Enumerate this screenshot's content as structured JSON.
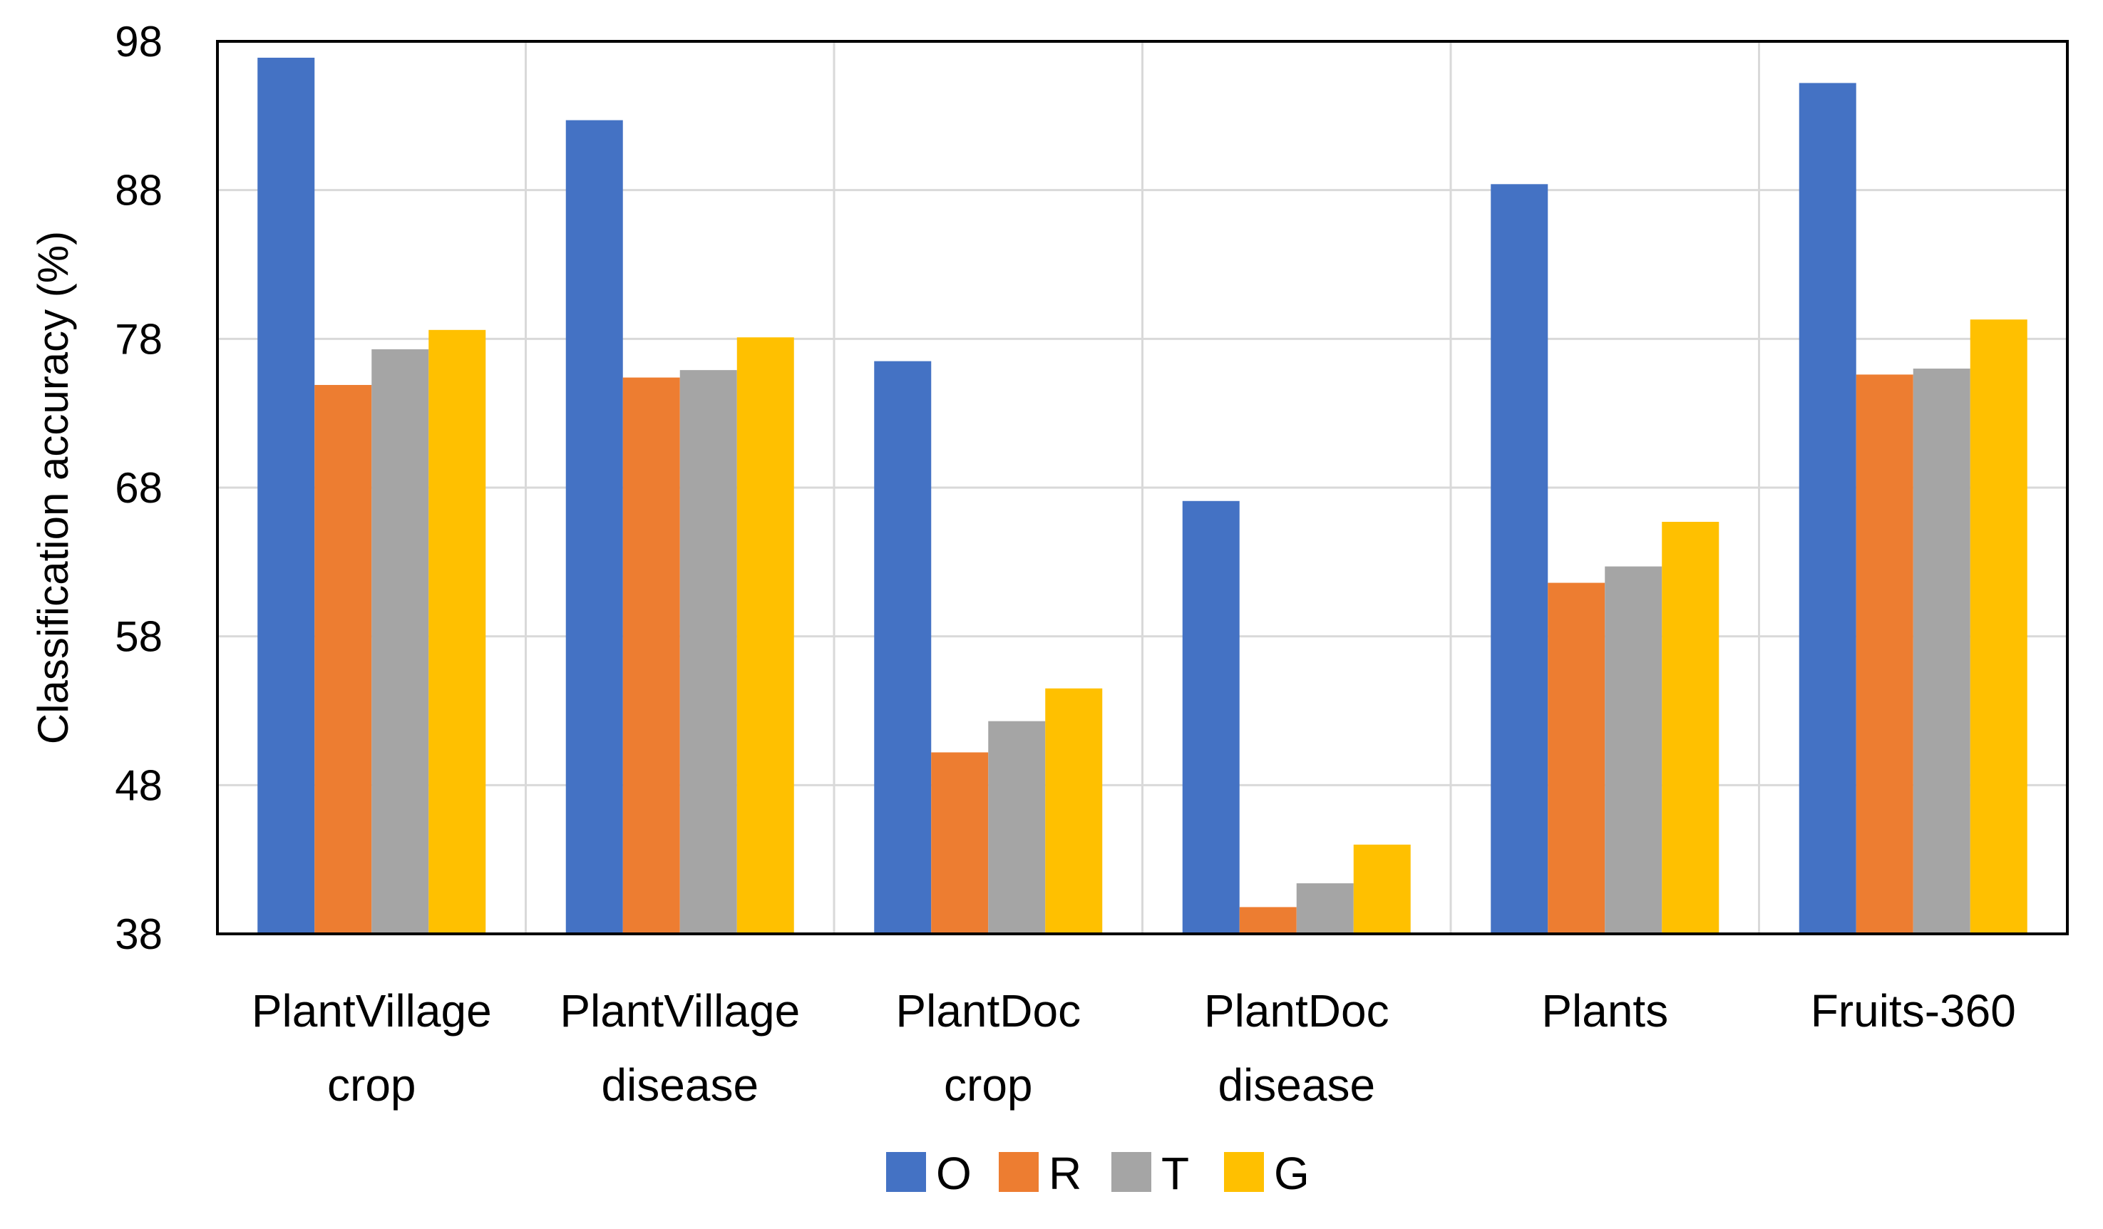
{
  "chart_data": {
    "type": "bar",
    "title": "",
    "xlabel": "",
    "ylabel": "Classification accuracy (%)",
    "ylim": [
      38,
      98
    ],
    "yticks": [
      38,
      48,
      58,
      68,
      78,
      88,
      98
    ],
    "grid": true,
    "legend_position": "bottom-center",
    "categories": [
      [
        "PlantVillage",
        "crop"
      ],
      [
        "PlantVillage",
        "disease"
      ],
      [
        "PlantDoc",
        "crop"
      ],
      [
        "PlantDoc",
        "disease"
      ],
      [
        "Plants"
      ],
      [
        "Fruits-360"
      ]
    ],
    "series": [
      {
        "name": "O",
        "color": "#4472C4",
        "values": [
          96.9,
          92.7,
          76.5,
          67.1,
          88.4,
          95.2
        ]
      },
      {
        "name": "R",
        "color": "#ED7D31",
        "values": [
          74.9,
          75.4,
          50.2,
          39.8,
          61.6,
          75.6
        ]
      },
      {
        "name": "T",
        "color": "#A5A5A5",
        "values": [
          77.3,
          75.9,
          52.3,
          41.4,
          62.7,
          76.0
        ]
      },
      {
        "name": "G",
        "color": "#FFC000",
        "values": [
          78.6,
          78.1,
          54.5,
          44.0,
          65.7,
          79.3
        ]
      }
    ]
  }
}
